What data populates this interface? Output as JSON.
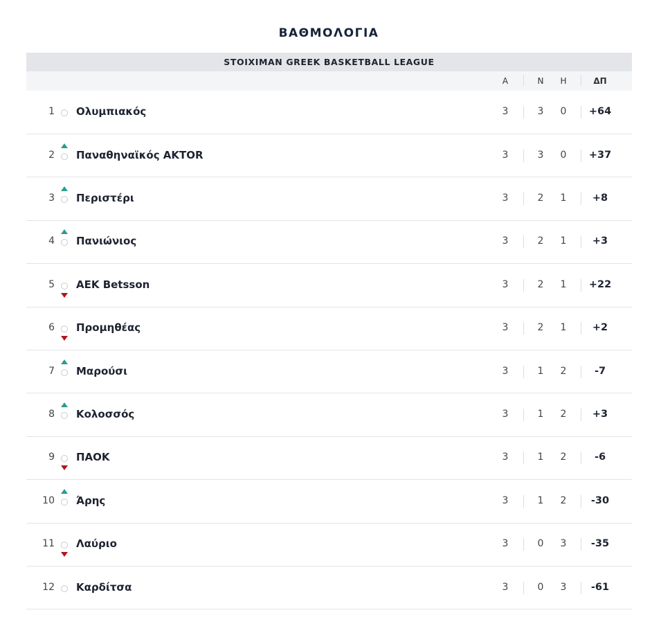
{
  "title": "ΒΑΘΜΟΛΟΓΙΑ",
  "table": {
    "league": "STOIXIMAN GREEK BASKETBALL LEAGUE",
    "headers": [
      "Α",
      "Ν",
      "Η",
      "ΔΠ"
    ],
    "rows": [
      {
        "position": 1,
        "team": "Ολυμπιακός",
        "values": [
          3,
          3,
          0,
          "+64"
        ]
      },
      {
        "position": 2,
        "trend": "up",
        "team": "Παναθηναϊκός AKTOR",
        "values": [
          3,
          3,
          0,
          "+37"
        ]
      },
      {
        "position": 3,
        "trend": "up",
        "team": "Περιστέρι",
        "values": [
          3,
          2,
          1,
          "+8"
        ]
      },
      {
        "position": 4,
        "trend": "up",
        "team": "Πανιώνιος",
        "values": [
          3,
          2,
          1,
          "+3"
        ]
      },
      {
        "position": 5,
        "trend": "down",
        "team": "ΑΕΚ Betsson",
        "values": [
          3,
          2,
          1,
          "+22"
        ]
      },
      {
        "position": 6,
        "trend": "down",
        "team": "Προμηθέας",
        "values": [
          3,
          2,
          1,
          "+2"
        ]
      },
      {
        "position": 7,
        "trend": "up",
        "team": "Μαρούσι",
        "values": [
          3,
          1,
          2,
          "-7"
        ]
      },
      {
        "position": 8,
        "trend": "up",
        "team": "Κολοσσός",
        "values": [
          3,
          1,
          2,
          "+3"
        ]
      },
      {
        "position": 9,
        "trend": "down",
        "team": "ΠΑΟΚ",
        "values": [
          3,
          1,
          2,
          "-6"
        ]
      },
      {
        "position": 10,
        "trend": "up",
        "team": "Άρης",
        "values": [
          3,
          1,
          2,
          "-30"
        ]
      },
      {
        "position": 11,
        "trend": "down",
        "team": "Λαύριο",
        "values": [
          3,
          0,
          3,
          "-35"
        ]
      },
      {
        "position": 12,
        "team": "Καρδίτσα",
        "values": [
          3,
          0,
          3,
          "-61"
        ]
      }
    ]
  }
}
